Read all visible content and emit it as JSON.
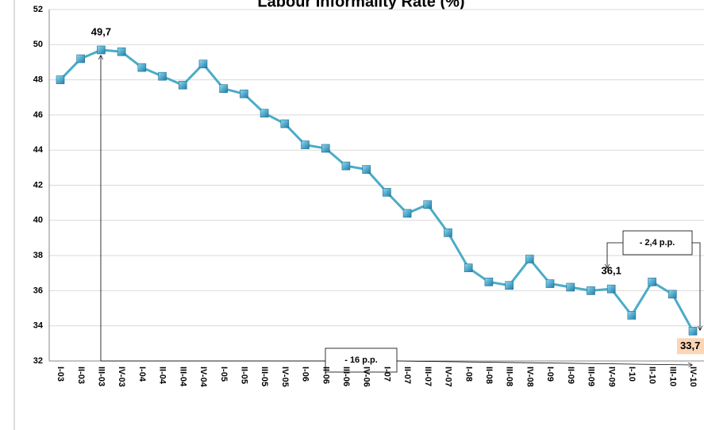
{
  "chart_data": {
    "type": "line",
    "title": "Labour Informality Rate (%)",
    "categories": [
      "I-03",
      "II-03",
      "III-03",
      "IV-03",
      "I-04",
      "II-04",
      "III-04",
      "IV-04",
      "I-05",
      "II-05",
      "III-05",
      "IV-05",
      "I-06",
      "II-06",
      "III-06",
      "IV-06",
      "I-07",
      "II-07",
      "III-07",
      "IV-07",
      "I-08",
      "II-08",
      "III-08",
      "IV-08",
      "I-09",
      "II-09",
      "III-09",
      "IV-09",
      "I-10",
      "II-10",
      "III-10",
      "IV-10"
    ],
    "values": [
      48.0,
      49.2,
      49.7,
      49.6,
      48.7,
      48.2,
      47.7,
      48.9,
      47.5,
      47.2,
      46.1,
      45.5,
      44.3,
      44.1,
      43.1,
      42.9,
      41.6,
      40.4,
      40.9,
      39.3,
      37.3,
      36.5,
      36.3,
      37.8,
      36.4,
      36.2,
      36.0,
      36.1,
      34.6,
      36.5,
      35.8,
      33.7
    ],
    "value_labels": [
      null,
      null,
      "49,7",
      null,
      null,
      null,
      null,
      null,
      null,
      null,
      null,
      null,
      null,
      null,
      null,
      null,
      null,
      null,
      null,
      null,
      null,
      null,
      null,
      null,
      null,
      null,
      null,
      "36,1",
      null,
      null,
      null,
      "33,7"
    ],
    "color": "#4bacc6",
    "ylim": [
      32,
      52
    ],
    "yticks": [
      32,
      34,
      36,
      38,
      40,
      42,
      44,
      46,
      48,
      50,
      52
    ],
    "grid": true,
    "annotations": [
      "- 16 p.p.",
      "- 2,4 p.p."
    ]
  }
}
